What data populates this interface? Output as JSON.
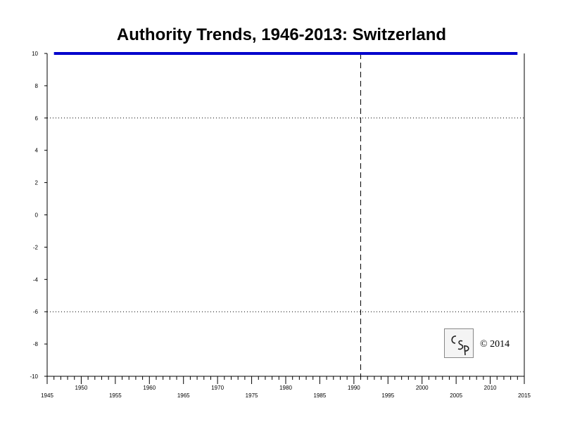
{
  "chart_data": {
    "type": "line",
    "title": "Authority Trends, 1946-2013: Switzerland",
    "xlabel": "",
    "ylabel": "",
    "xlim": [
      1945,
      2015
    ],
    "ylim": [
      -10,
      10
    ],
    "x_ticks_major": [
      1945,
      1950,
      1955,
      1960,
      1965,
      1970,
      1975,
      1980,
      1985,
      1990,
      1995,
      2000,
      2005,
      2010,
      2015
    ],
    "y_ticks": [
      10,
      8,
      6,
      4,
      2,
      0,
      -2,
      -4,
      -6,
      -8,
      -10
    ],
    "series": [
      {
        "color": "#0000cc",
        "x": [
          1946,
          2014
        ],
        "y": [
          10,
          10
        ]
      }
    ],
    "reference_lines": [
      {
        "orientation": "horizontal",
        "value": 6,
        "style": "dotted",
        "color": "#000000"
      },
      {
        "orientation": "horizontal",
        "value": -6,
        "style": "dotted",
        "color": "#000000"
      },
      {
        "orientation": "vertical",
        "value": 1991,
        "style": "dashed",
        "color": "#000000"
      }
    ],
    "grid": false,
    "legend": "none"
  },
  "watermark": {
    "logo_text": "CSP",
    "copyright": "© 2014"
  }
}
